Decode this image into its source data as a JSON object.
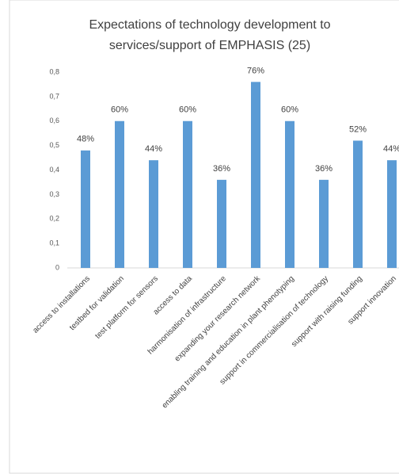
{
  "chart_data": {
    "type": "bar",
    "title": [
      "Expectations of technology development to",
      "services/support  of EMPHASIS (25)"
    ],
    "categories": [
      "access to installations",
      "testbed for validation",
      "test platform for sensors",
      "access to data",
      "harmonisation of infrastructure",
      "expanding your research network",
      "enabling training and education in plant phenotyping",
      "support in commercialisation of technology",
      "support with raising funding",
      "support innovation"
    ],
    "values": [
      0.48,
      0.6,
      0.44,
      0.6,
      0.36,
      0.76,
      0.6,
      0.36,
      0.52,
      0.44
    ],
    "value_labels": [
      "48%",
      "60%",
      "44%",
      "60%",
      "36%",
      "76%",
      "60%",
      "36%",
      "52%",
      "44%"
    ],
    "color": "#5b9bd5",
    "ylim": [
      0,
      0.8
    ],
    "yticks": [
      0,
      {
        "value": 0.1,
        "label": "0,1"
      },
      {
        "value": 0.2,
        "label": "0,2"
      },
      {
        "value": 0.3,
        "label": "0,3"
      },
      {
        "value": 0.4,
        "label": "0,4"
      },
      {
        "value": 0.5,
        "label": "0,5"
      },
      {
        "value": 0.6,
        "label": "0,6"
      },
      {
        "value": 0.7,
        "label": "0,7"
      },
      {
        "value": 0.8,
        "label": "0,8"
      }
    ],
    "grid": false
  }
}
